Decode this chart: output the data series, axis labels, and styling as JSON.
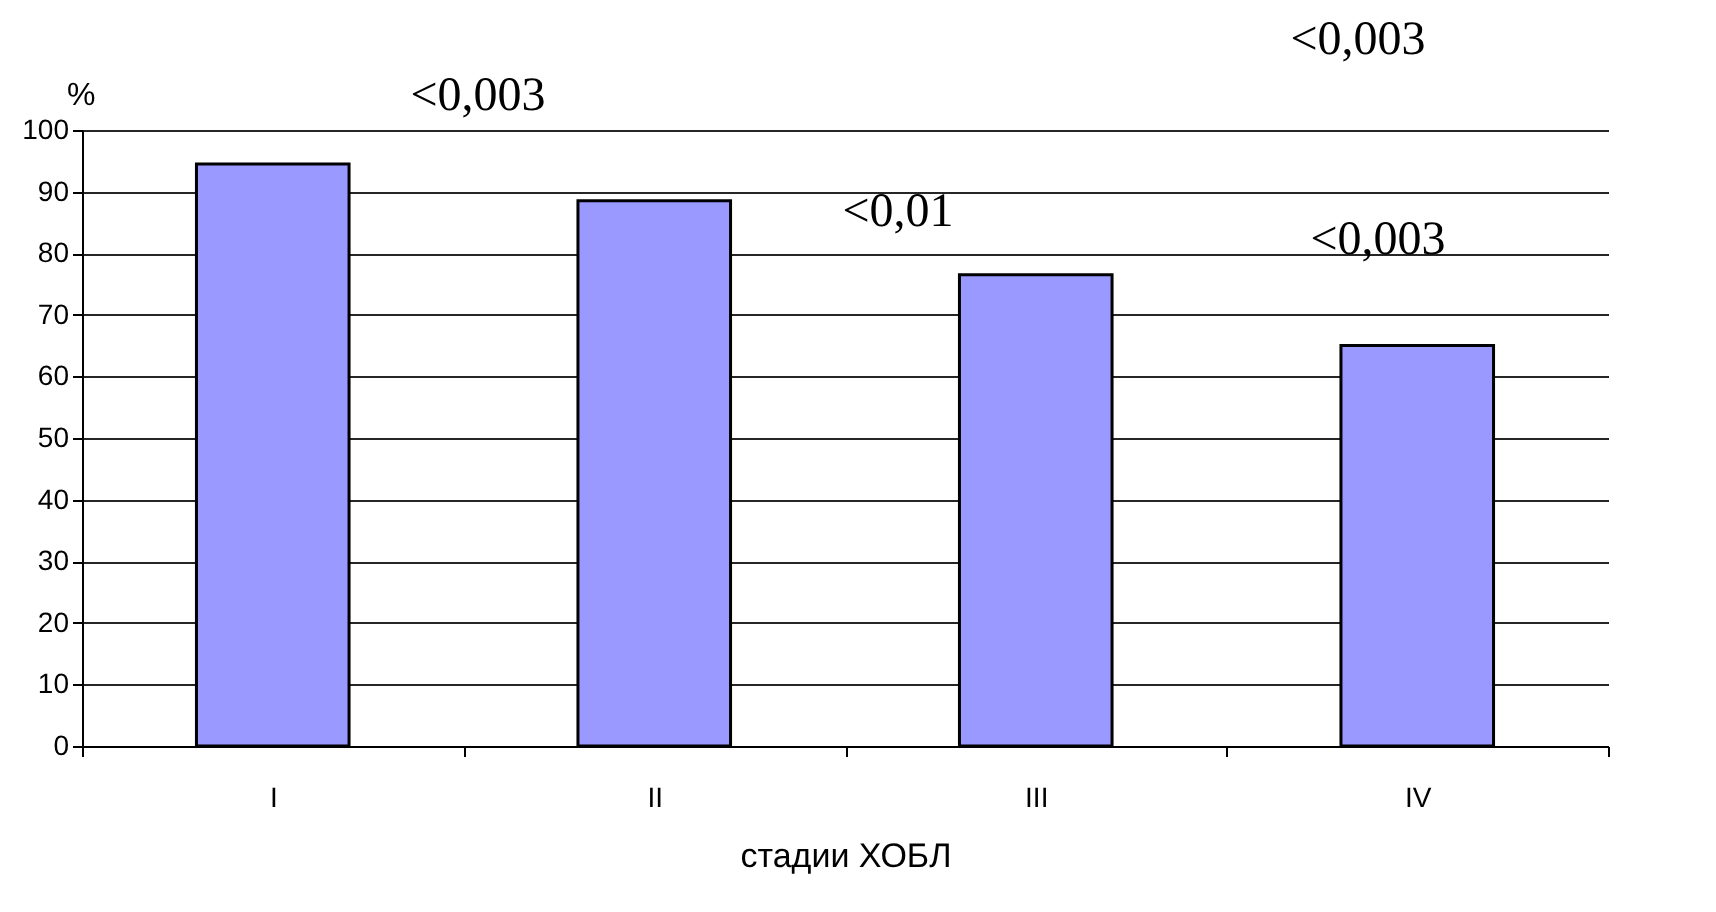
{
  "chart_data": {
    "type": "bar",
    "ylabel": "%",
    "xlabel": "стадии ХОБЛ",
    "categories": [
      "I",
      "II",
      "III",
      "IV"
    ],
    "values": [
      94.5,
      88.5,
      76.5,
      65
    ],
    "color": "#9999ff",
    "ylim": [
      0,
      100
    ],
    "yticks": [
      0,
      10,
      20,
      30,
      40,
      50,
      60,
      70,
      80,
      90,
      100
    ],
    "grid": "y",
    "annotations": [
      "<0,003",
      "<0,003",
      "<0,01",
      "<0,003"
    ]
  }
}
